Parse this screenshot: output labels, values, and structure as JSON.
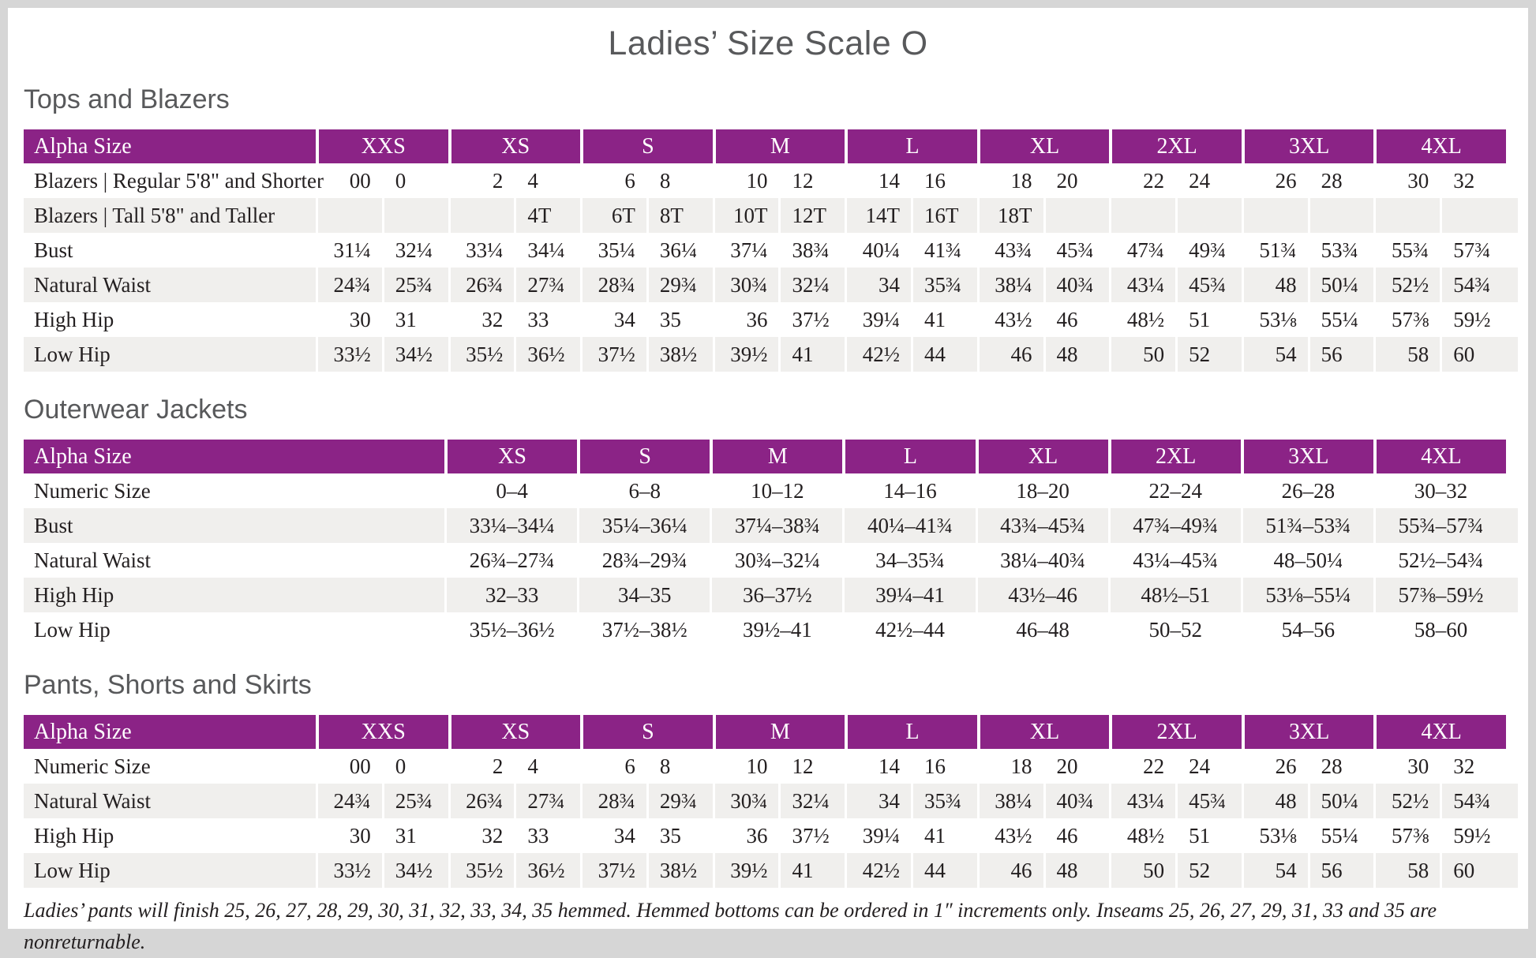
{
  "title": "Ladies’ Size Scale O",
  "footnote": "Ladies’ pants will finish 25, 26, 27, 28, 29, 30, 31, 32, 33, 34, 35 hemmed. Hemmed bottoms can be ordered in 1″ increments only. Inseams 25, 26, 27, 29, 31, 33 and 35 are nonreturnable.",
  "colors": {
    "header_purple": "#8b2386",
    "stripe_gray": "#f0efed",
    "frame_gray": "#d6d6d6",
    "heading_gray": "#58595b",
    "text_dark": "#231f20"
  },
  "tables": [
    {
      "heading": "Tops and Blazers",
      "label_header": "Alpha Size",
      "paired": true,
      "columns": [
        "XXS",
        "XS",
        "S",
        "M",
        "L",
        "XL",
        "2XL",
        "3XL",
        "4XL"
      ],
      "rows": [
        {
          "label": "Blazers | Regular 5'8\" and Shorter",
          "cells": [
            [
              "00",
              "0"
            ],
            [
              "2",
              "4"
            ],
            [
              "6",
              "8"
            ],
            [
              "10",
              "12"
            ],
            [
              "14",
              "16"
            ],
            [
              "18",
              "20"
            ],
            [
              "22",
              "24"
            ],
            [
              "26",
              "28"
            ],
            [
              "30",
              "32"
            ]
          ]
        },
        {
          "label": "Blazers | Tall 5'8\" and Taller",
          "cells": [
            [
              "",
              ""
            ],
            [
              "",
              "4T"
            ],
            [
              "6T",
              "8T"
            ],
            [
              "10T",
              "12T"
            ],
            [
              "14T",
              "16T"
            ],
            [
              "18T",
              ""
            ],
            [
              "",
              ""
            ],
            [
              "",
              ""
            ],
            [
              "",
              ""
            ]
          ]
        },
        {
          "label": "Bust",
          "cells": [
            [
              "31¼",
              "32¼"
            ],
            [
              "33¼",
              "34¼"
            ],
            [
              "35¼",
              "36¼"
            ],
            [
              "37¼",
              "38¾"
            ],
            [
              "40¼",
              "41¾"
            ],
            [
              "43¾",
              "45¾"
            ],
            [
              "47¾",
              "49¾"
            ],
            [
              "51¾",
              "53¾"
            ],
            [
              "55¾",
              "57¾"
            ]
          ]
        },
        {
          "label": "Natural Waist",
          "cells": [
            [
              "24¾",
              "25¾"
            ],
            [
              "26¾",
              "27¾"
            ],
            [
              "28¾",
              "29¾"
            ],
            [
              "30¾",
              "32¼"
            ],
            [
              "34",
              "35¾"
            ],
            [
              "38¼",
              "40¾"
            ],
            [
              "43¼",
              "45¾"
            ],
            [
              "48",
              "50¼"
            ],
            [
              "52½",
              "54¾"
            ]
          ]
        },
        {
          "label": "High Hip",
          "cells": [
            [
              "30",
              "31"
            ],
            [
              "32",
              "33"
            ],
            [
              "34",
              "35"
            ],
            [
              "36",
              "37½"
            ],
            [
              "39¼",
              "41"
            ],
            [
              "43½",
              "46"
            ],
            [
              "48½",
              "51"
            ],
            [
              "53⅛",
              "55¼"
            ],
            [
              "57⅜",
              "59½"
            ]
          ]
        },
        {
          "label": "Low Hip",
          "cells": [
            [
              "33½",
              "34½"
            ],
            [
              "35½",
              "36½"
            ],
            [
              "37½",
              "38½"
            ],
            [
              "39½",
              "41"
            ],
            [
              "42½",
              "44"
            ],
            [
              "46",
              "48"
            ],
            [
              "50",
              "52"
            ],
            [
              "54",
              "56"
            ],
            [
              "58",
              "60"
            ]
          ]
        }
      ]
    },
    {
      "heading": "Outerwear Jackets",
      "label_header": "Alpha Size",
      "paired": false,
      "columns": [
        "XS",
        "S",
        "M",
        "L",
        "XL",
        "2XL",
        "3XL",
        "4XL"
      ],
      "rows": [
        {
          "label": "Numeric Size",
          "cells": [
            "0–4",
            "6–8",
            "10–12",
            "14–16",
            "18–20",
            "22–24",
            "26–28",
            "30–32"
          ]
        },
        {
          "label": "Bust",
          "cells": [
            "33¼–34¼",
            "35¼–36¼",
            "37¼–38¾",
            "40¼–41¾",
            "43¾–45¾",
            "47¾–49¾",
            "51¾–53¾",
            "55¾–57¾"
          ]
        },
        {
          "label": "Natural Waist",
          "cells": [
            "26¾–27¾",
            "28¾–29¾",
            "30¾–32¼",
            "34–35¾",
            "38¼–40¾",
            "43¼–45¾",
            "48–50¼",
            "52½–54¾"
          ]
        },
        {
          "label": "High Hip",
          "cells": [
            "32–33",
            "34–35",
            "36–37½",
            "39¼–41",
            "43½–46",
            "48½–51",
            "53⅛–55¼",
            "57⅜–59½"
          ]
        },
        {
          "label": "Low Hip",
          "cells": [
            "35½–36½",
            "37½–38½",
            "39½–41",
            "42½–44",
            "46–48",
            "50–52",
            "54–56",
            "58–60"
          ]
        }
      ]
    },
    {
      "heading": "Pants, Shorts and Skirts",
      "label_header": "Alpha Size",
      "paired": true,
      "columns": [
        "XXS",
        "XS",
        "S",
        "M",
        "L",
        "XL",
        "2XL",
        "3XL",
        "4XL"
      ],
      "rows": [
        {
          "label": "Numeric Size",
          "cells": [
            [
              "00",
              "0"
            ],
            [
              "2",
              "4"
            ],
            [
              "6",
              "8"
            ],
            [
              "10",
              "12"
            ],
            [
              "14",
              "16"
            ],
            [
              "18",
              "20"
            ],
            [
              "22",
              "24"
            ],
            [
              "26",
              "28"
            ],
            [
              "30",
              "32"
            ]
          ]
        },
        {
          "label": "Natural Waist",
          "cells": [
            [
              "24¾",
              "25¾"
            ],
            [
              "26¾",
              "27¾"
            ],
            [
              "28¾",
              "29¾"
            ],
            [
              "30¾",
              "32¼"
            ],
            [
              "34",
              "35¾"
            ],
            [
              "38¼",
              "40¾"
            ],
            [
              "43¼",
              "45¾"
            ],
            [
              "48",
              "50¼"
            ],
            [
              "52½",
              "54¾"
            ]
          ]
        },
        {
          "label": "High Hip",
          "cells": [
            [
              "30",
              "31"
            ],
            [
              "32",
              "33"
            ],
            [
              "34",
              "35"
            ],
            [
              "36",
              "37½"
            ],
            [
              "39¼",
              "41"
            ],
            [
              "43½",
              "46"
            ],
            [
              "48½",
              "51"
            ],
            [
              "53⅛",
              "55¼"
            ],
            [
              "57⅜",
              "59½"
            ]
          ]
        },
        {
          "label": "Low Hip",
          "cells": [
            [
              "33½",
              "34½"
            ],
            [
              "35½",
              "36½"
            ],
            [
              "37½",
              "38½"
            ],
            [
              "39½",
              "41"
            ],
            [
              "42½",
              "44"
            ],
            [
              "46",
              "48"
            ],
            [
              "50",
              "52"
            ],
            [
              "54",
              "56"
            ],
            [
              "58",
              "60"
            ]
          ]
        }
      ]
    }
  ]
}
